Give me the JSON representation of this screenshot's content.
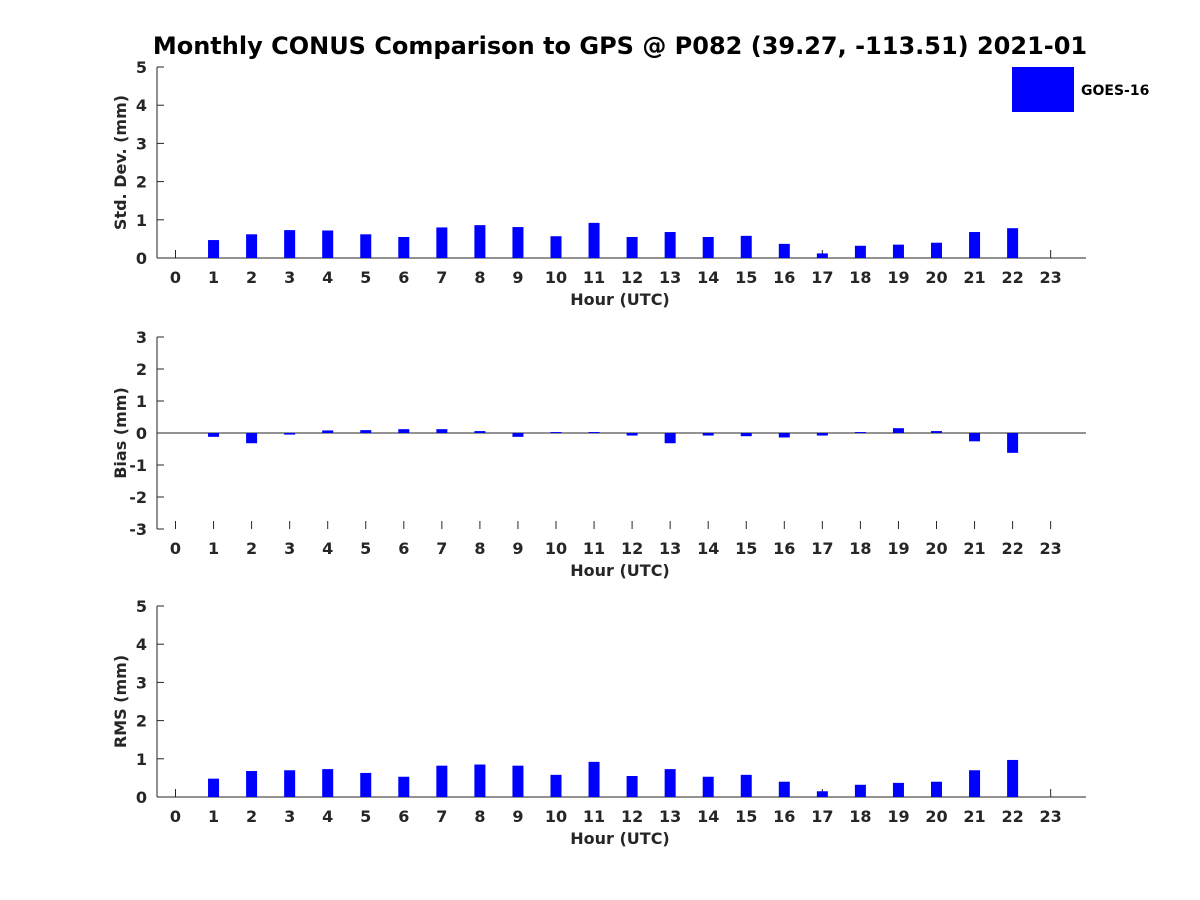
{
  "title": "Monthly CONUS Comparison to GPS @ P082 (39.27, -113.51) 2021-01",
  "legend": {
    "label": "GOES-16",
    "placement": "top-right"
  },
  "colors": {
    "bar": "#0000ff",
    "axis": "#262626",
    "text": "#262626",
    "title": "#000000"
  },
  "chart_data": [
    {
      "type": "bar",
      "title": "Monthly CONUS Comparison to GPS @ P082 (39.27, -113.51) 2021-01",
      "xlabel": "Hour (UTC)",
      "ylabel": "Std. Dev. (mm)",
      "ylim": [
        0,
        5
      ],
      "yticks": [
        "0",
        "1",
        "2",
        "3",
        "4",
        "5"
      ],
      "categories": [
        "0",
        "1",
        "2",
        "3",
        "4",
        "5",
        "6",
        "7",
        "8",
        "9",
        "10",
        "11",
        "12",
        "13",
        "14",
        "15",
        "16",
        "17",
        "18",
        "19",
        "20",
        "21",
        "22",
        "23"
      ],
      "series": [
        {
          "name": "GOES-16",
          "values": [
            0,
            0.47,
            0.62,
            0.73,
            0.72,
            0.62,
            0.55,
            0.8,
            0.86,
            0.81,
            0.57,
            0.92,
            0.55,
            0.68,
            0.55,
            0.58,
            0.37,
            0.12,
            0.32,
            0.35,
            0.4,
            0.68,
            0.78,
            0
          ]
        }
      ]
    },
    {
      "type": "bar",
      "xlabel": "Hour (UTC)",
      "ylabel": "Bias (mm)",
      "ylim": [
        -3,
        3
      ],
      "yticks": [
        "-3",
        "-2",
        "-1",
        "0",
        "1",
        "2",
        "3"
      ],
      "categories": [
        "0",
        "1",
        "2",
        "3",
        "4",
        "5",
        "6",
        "7",
        "8",
        "9",
        "10",
        "11",
        "12",
        "13",
        "14",
        "15",
        "16",
        "17",
        "18",
        "19",
        "20",
        "21",
        "22",
        "23"
      ],
      "series": [
        {
          "name": "GOES-16",
          "values": [
            0,
            -0.12,
            -0.32,
            -0.05,
            0.08,
            0.09,
            0.12,
            0.12,
            0.06,
            -0.12,
            0.03,
            0.03,
            -0.08,
            -0.32,
            -0.08,
            -0.1,
            -0.14,
            -0.08,
            0.03,
            0.15,
            0.06,
            -0.26,
            -0.62,
            0
          ]
        }
      ]
    },
    {
      "type": "bar",
      "xlabel": "Hour (UTC)",
      "ylabel": "RMS (mm)",
      "ylim": [
        0,
        5
      ],
      "yticks": [
        "0",
        "1",
        "2",
        "3",
        "4",
        "5"
      ],
      "categories": [
        "0",
        "1",
        "2",
        "3",
        "4",
        "5",
        "6",
        "7",
        "8",
        "9",
        "10",
        "11",
        "12",
        "13",
        "14",
        "15",
        "16",
        "17",
        "18",
        "19",
        "20",
        "21",
        "22",
        "23"
      ],
      "series": [
        {
          "name": "GOES-16",
          "values": [
            0,
            0.48,
            0.68,
            0.7,
            0.73,
            0.63,
            0.53,
            0.82,
            0.85,
            0.82,
            0.58,
            0.92,
            0.55,
            0.73,
            0.53,
            0.58,
            0.4,
            0.15,
            0.32,
            0.37,
            0.4,
            0.7,
            0.97,
            0
          ]
        }
      ]
    }
  ]
}
